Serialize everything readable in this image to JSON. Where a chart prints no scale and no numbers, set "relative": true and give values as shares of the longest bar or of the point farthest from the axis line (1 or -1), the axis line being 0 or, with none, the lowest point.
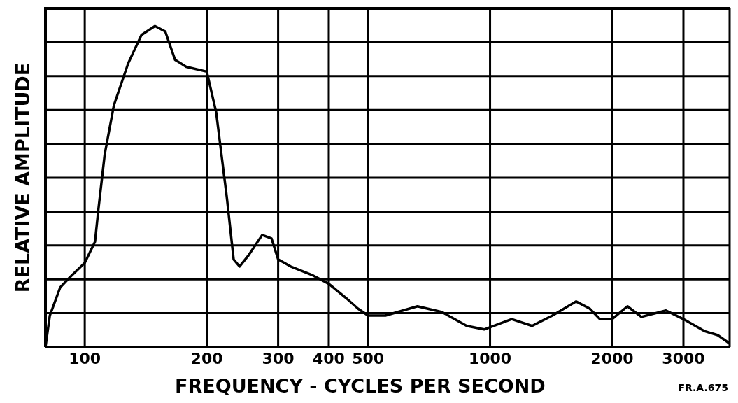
{
  "chart_data": {
    "type": "line",
    "xlabel": "FREQUENCY - CYCLES PER SECOND",
    "ylabel": "RELATIVE AMPLITUDE",
    "annotations": [
      "FR.A.675"
    ],
    "relative": true,
    "log": "x",
    "grid": true,
    "marker": "none",
    "line_style": "solid",
    "xlim": [
      80,
      3900
    ],
    "xticks": [
      100,
      200,
      300,
      400,
      500,
      1000,
      2000,
      3000
    ],
    "x": [
      80,
      82,
      87,
      92,
      100,
      106,
      108,
      112,
      118,
      128,
      138,
      149,
      158,
      167,
      178,
      200,
      211,
      224,
      233,
      241,
      253,
      274,
      289,
      300,
      322,
      363,
      400,
      441,
      472,
      500,
      552,
      662,
      761,
      876,
      967,
      1131,
      1270,
      1425,
      1631,
      1761,
      1866,
      2000,
      2183,
      2362,
      2717,
      3000,
      3376,
      3646,
      3900
    ],
    "series": [
      {
        "color": "#000000",
        "values": [
          0,
          0.098,
          0.186,
          0.218,
          0.262,
          0.328,
          0.426,
          0.6,
          0.753,
          0.884,
          0.972,
          1.0,
          0.983,
          0.895,
          0.873,
          0.858,
          0.731,
          0.469,
          0.273,
          0.251,
          0.284,
          0.349,
          0.338,
          0.273,
          0.251,
          0.225,
          0.197,
          0.153,
          0.12,
          0.098,
          0.098,
          0.127,
          0.109,
          0.066,
          0.055,
          0.087,
          0.066,
          0.098,
          0.142,
          0.12,
          0.087,
          0.087,
          0.127,
          0.094,
          0.114,
          0.087,
          0.05,
          0.037,
          0.011
        ]
      }
    ]
  }
}
